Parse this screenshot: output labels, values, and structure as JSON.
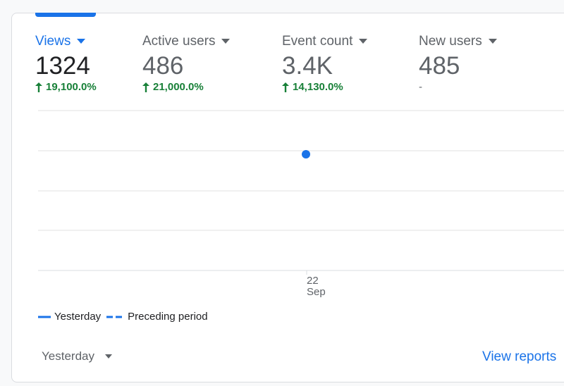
{
  "metrics": [
    {
      "label": "Views",
      "value": "1324",
      "change": "19,100.0%",
      "selected": true
    },
    {
      "label": "Active users",
      "value": "486",
      "change": "21,000.0%"
    },
    {
      "label": "Event count",
      "value": "3.4K",
      "change": "14,130.0%"
    },
    {
      "label": "New users",
      "value": "485",
      "change": "-"
    }
  ],
  "chart": {
    "x_tick": [
      "22",
      "Sep"
    ]
  },
  "legend": [
    "Yesterday",
    "Preceding period"
  ],
  "footer": {
    "period": "Yesterday",
    "link": "View reports"
  }
}
